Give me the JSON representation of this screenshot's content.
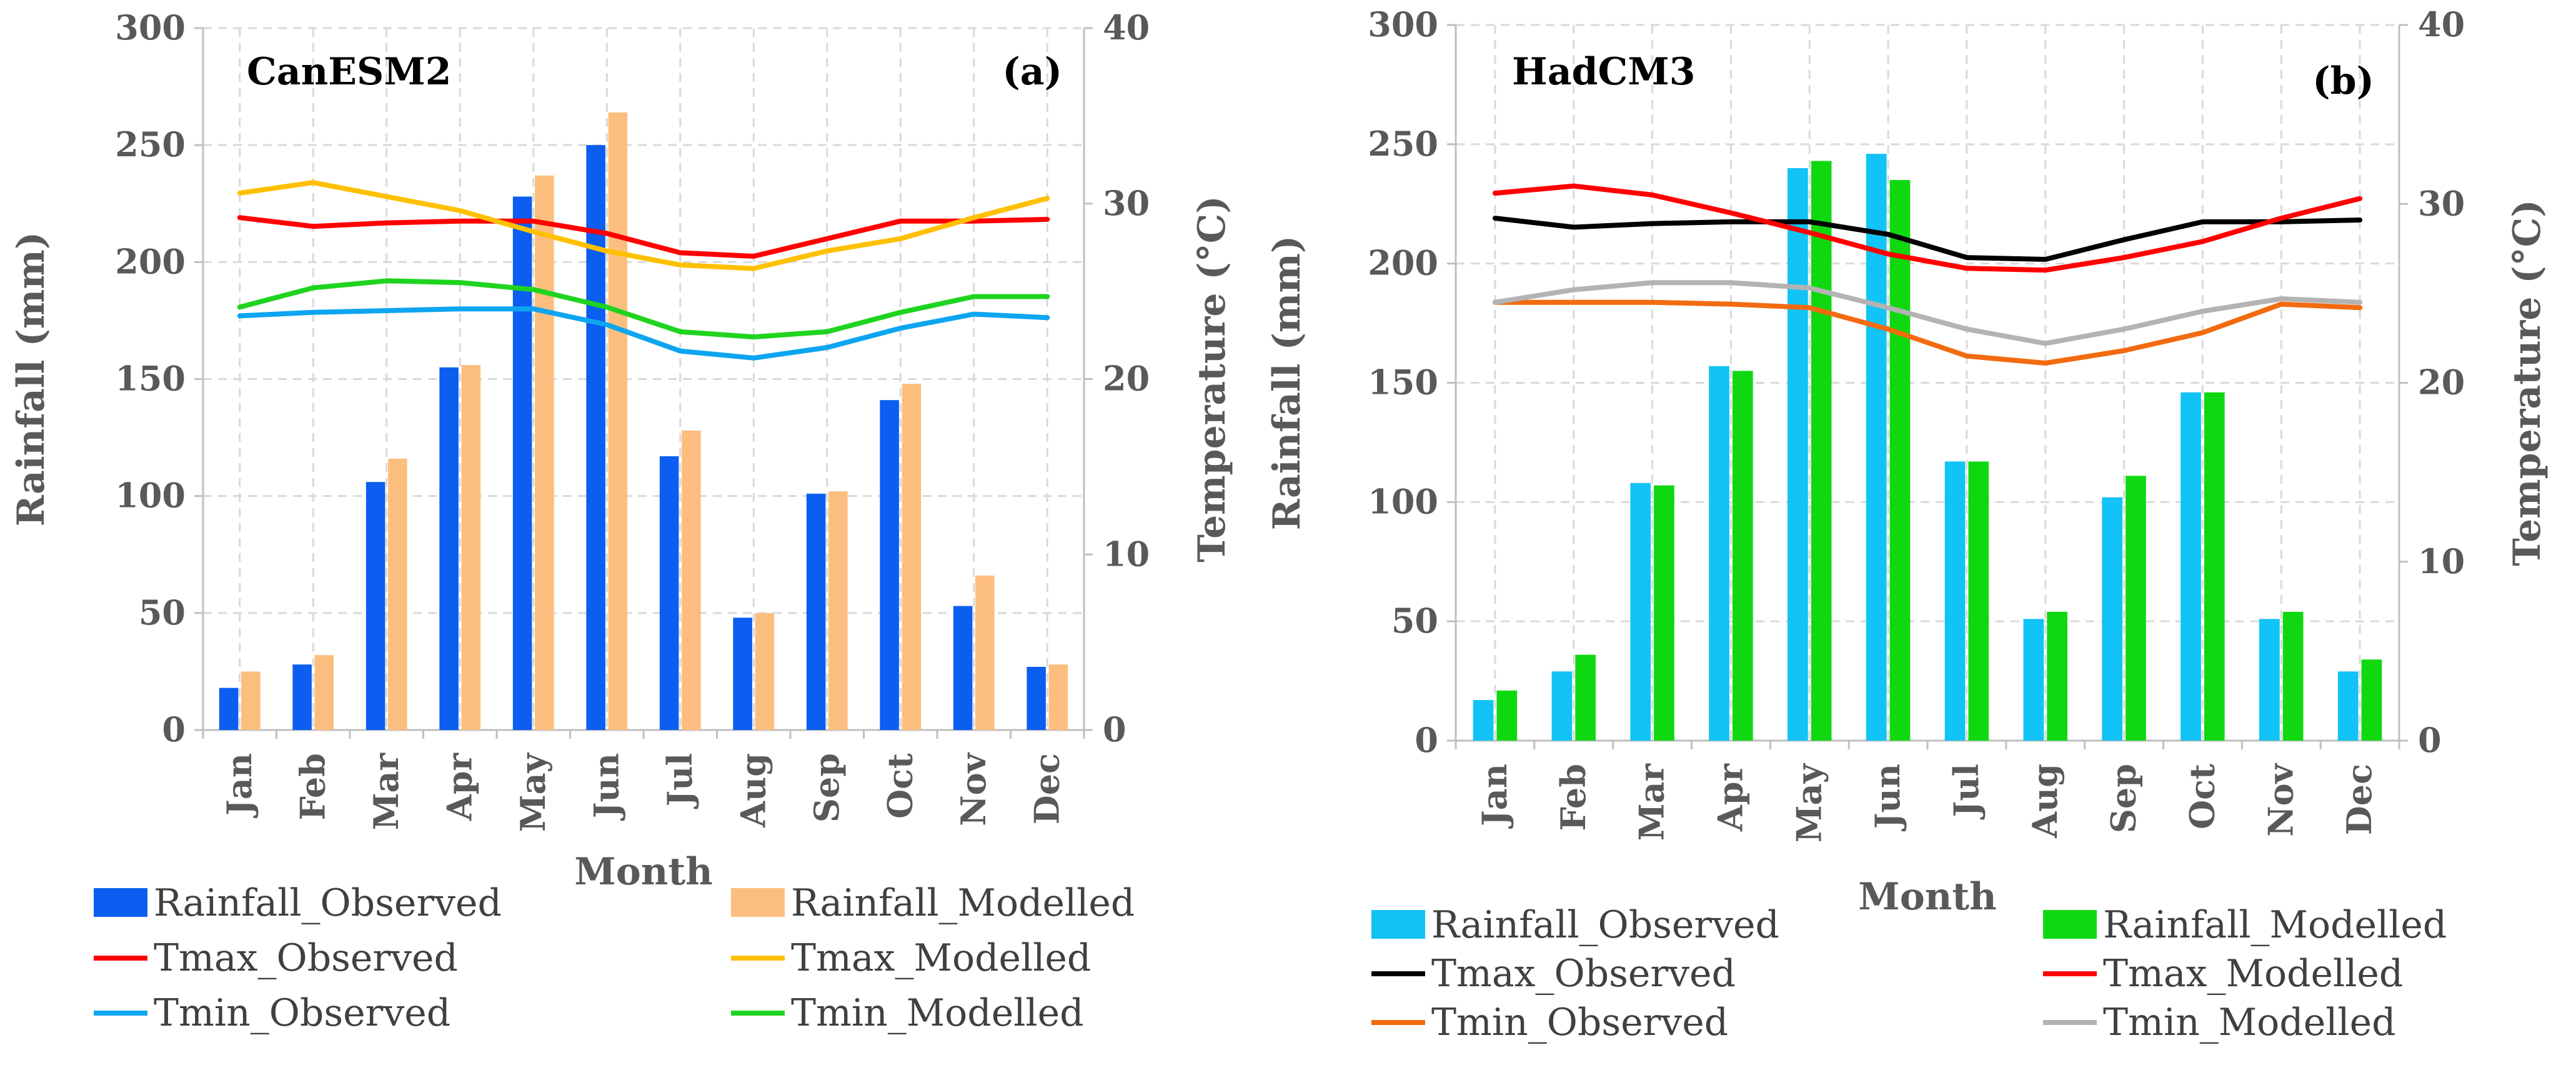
{
  "chart_data": [
    {
      "type": "bar+line",
      "title": "CanESM2",
      "panel_label": "(a)",
      "xlabel": "Month",
      "ylabel": "Rainfall (mm)",
      "y2label": "Temperature (°C)",
      "ylim": [
        0,
        300
      ],
      "y2lim": [
        0,
        40
      ],
      "yticks": [
        "0",
        "50",
        "100",
        "150",
        "200",
        "250",
        "300"
      ],
      "y2ticks": [
        "0",
        "10",
        "20",
        "30",
        "40"
      ],
      "grid": true,
      "categories": [
        "Jan",
        "Feb",
        "Mar",
        "Apr",
        "May",
        "Jun",
        "Jul",
        "Aug",
        "Sep",
        "Oct",
        "Nov",
        "Dec"
      ],
      "bar_series": [
        {
          "name": "Rainfall_Observed",
          "color": "#0b5ef0",
          "values": [
            18,
            28,
            106,
            155,
            228,
            250,
            117,
            48,
            101,
            141,
            53,
            27
          ]
        },
        {
          "name": "Rainfall_Modelled",
          "color": "#fcbe7f",
          "values": [
            25,
            32,
            116,
            156,
            237,
            264,
            128,
            50,
            102,
            148,
            66,
            28
          ]
        }
      ],
      "line_series": [
        {
          "name": "Tmax_Observed",
          "color": "#ff0000",
          "values": [
            29.2,
            28.7,
            28.9,
            29.0,
            29.0,
            28.3,
            27.2,
            27.0,
            28.0,
            29.0,
            29.0,
            29.1
          ]
        },
        {
          "name": "Tmax_Modelled",
          "color": "#ffc000",
          "values": [
            30.6,
            31.2,
            30.4,
            29.6,
            28.4,
            27.3,
            26.5,
            26.3,
            27.3,
            28.0,
            29.2,
            30.3
          ]
        },
        {
          "name": "Tmin_Observed",
          "color": "#0ea5f0",
          "values": [
            23.6,
            23.8,
            23.9,
            24.0,
            24.0,
            23.1,
            21.6,
            21.2,
            21.8,
            22.9,
            23.7,
            23.5
          ]
        },
        {
          "name": "Tmin_Modelled",
          "color": "#1fd41f",
          "values": [
            24.1,
            25.2,
            25.6,
            25.5,
            25.1,
            24.1,
            22.7,
            22.4,
            22.7,
            23.8,
            24.7,
            24.7
          ]
        }
      ],
      "legend": [
        {
          "name": "Rainfall_Observed",
          "kind": "bar",
          "color": "#0b5ef0"
        },
        {
          "name": "Rainfall_Modelled",
          "kind": "bar",
          "color": "#fcbe7f"
        },
        {
          "name": "Tmax_Observed",
          "kind": "line",
          "color": "#ff0000"
        },
        {
          "name": "Tmax_Modelled",
          "kind": "line",
          "color": "#ffc000"
        },
        {
          "name": "Tmin_Observed",
          "kind": "line",
          "color": "#0ea5f0"
        },
        {
          "name": "Tmin_Modelled",
          "kind": "line",
          "color": "#1fd41f"
        }
      ],
      "legend_placement": "bottom"
    },
    {
      "type": "bar+line",
      "title": "HadCM3",
      "panel_label": "(b)",
      "xlabel": "Month",
      "ylabel": "Rainfall (mm)",
      "y2label": "Temperature (°C)",
      "ylim": [
        0,
        300
      ],
      "y2lim": [
        0,
        40
      ],
      "yticks": [
        "0",
        "50",
        "100",
        "150",
        "200",
        "250",
        "300"
      ],
      "y2ticks": [
        "0",
        "10",
        "20",
        "30",
        "40"
      ],
      "grid": true,
      "categories": [
        "Jan",
        "Feb",
        "Mar",
        "Apr",
        "May",
        "Jun",
        "Jul",
        "Aug",
        "Sep",
        "Oct",
        "Nov",
        "Dec"
      ],
      "bar_series": [
        {
          "name": "Rainfall_Observed",
          "color": "#12c3f5",
          "values": [
            17,
            29,
            108,
            157,
            240,
            246,
            117,
            51,
            102,
            146,
            51,
            29
          ]
        },
        {
          "name": "Rainfall_Modelled",
          "color": "#10d810",
          "values": [
            21,
            36,
            107,
            155,
            243,
            235,
            117,
            54,
            111,
            146,
            54,
            34
          ]
        }
      ],
      "line_series": [
        {
          "name": "Tmax_Observed",
          "color": "#000000",
          "values": [
            29.2,
            28.7,
            28.9,
            29.0,
            29.0,
            28.3,
            27.0,
            26.9,
            28.0,
            29.0,
            29.0,
            29.1
          ]
        },
        {
          "name": "Tmax_Modelled",
          "color": "#ff0000",
          "values": [
            30.6,
            31.0,
            30.5,
            29.5,
            28.4,
            27.2,
            26.4,
            26.3,
            27.0,
            27.9,
            29.2,
            30.3
          ]
        },
        {
          "name": "Tmin_Observed",
          "color": "#f26b10",
          "values": [
            24.5,
            24.5,
            24.5,
            24.4,
            24.2,
            23.0,
            21.5,
            21.1,
            21.8,
            22.8,
            24.4,
            24.2
          ]
        },
        {
          "name": "Tmin_Modelled",
          "color": "#b3b3b3",
          "values": [
            24.5,
            25.2,
            25.6,
            25.6,
            25.3,
            24.2,
            23.0,
            22.2,
            23.0,
            24.0,
            24.7,
            24.5
          ]
        }
      ],
      "legend": [
        {
          "name": "Rainfall_Observed",
          "kind": "bar",
          "color": "#12c3f5"
        },
        {
          "name": "Rainfall_Modelled",
          "kind": "bar",
          "color": "#10d810"
        },
        {
          "name": "Tmax_Observed",
          "kind": "line",
          "color": "#000000"
        },
        {
          "name": "Tmax_Modelled",
          "kind": "line",
          "color": "#ff0000"
        },
        {
          "name": "Tmin_Observed",
          "kind": "line",
          "color": "#f26b10"
        },
        {
          "name": "Tmin_Modelled",
          "kind": "line",
          "color": "#b3b3b3"
        }
      ],
      "legend_placement": "bottom"
    }
  ]
}
